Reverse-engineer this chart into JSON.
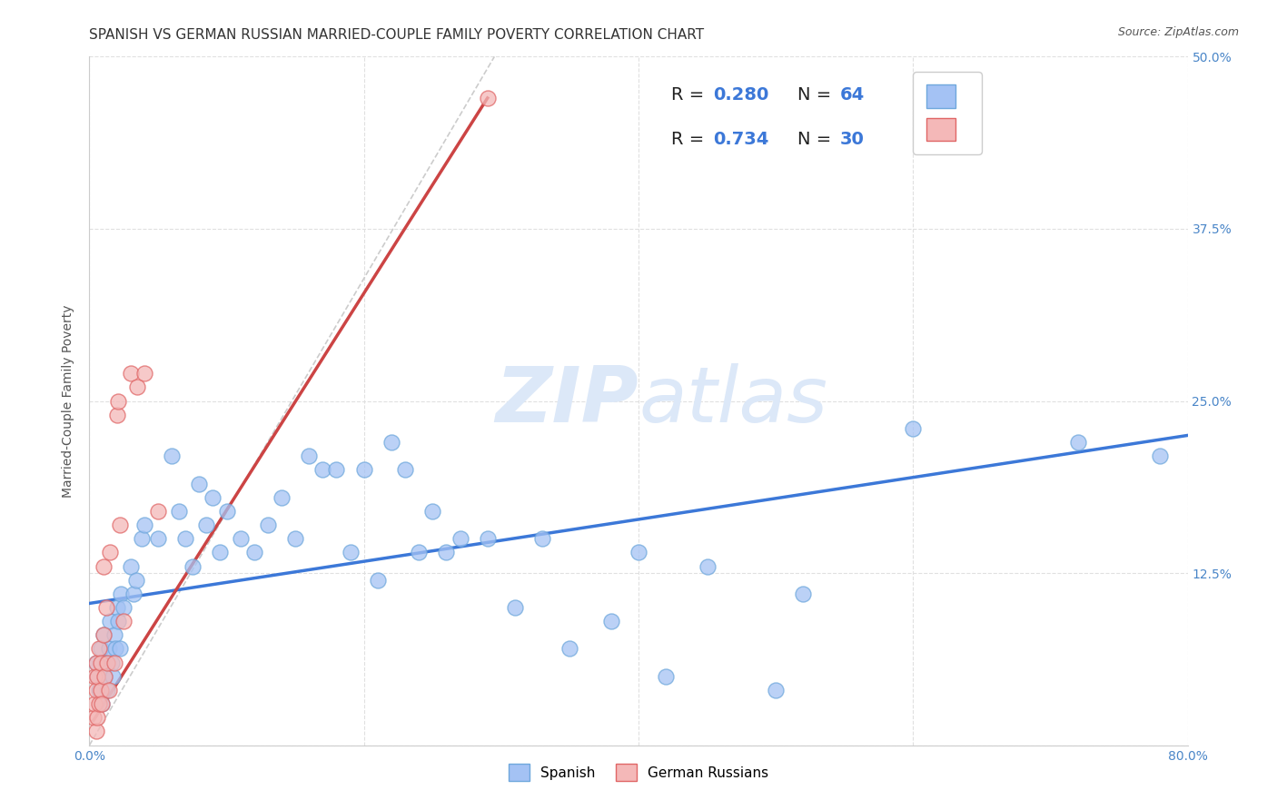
{
  "title": "SPANISH VS GERMAN RUSSIAN MARRIED-COUPLE FAMILY POVERTY CORRELATION CHART",
  "source": "Source: ZipAtlas.com",
  "ylabel": "Married-Couple Family Poverty",
  "xlim": [
    0.0,
    0.8
  ],
  "ylim": [
    0.0,
    0.5
  ],
  "xticks": [
    0.0,
    0.2,
    0.4,
    0.6,
    0.8
  ],
  "xticklabels": [
    "0.0%",
    "",
    "",
    "",
    "80.0%"
  ],
  "yticks": [
    0.0,
    0.125,
    0.25,
    0.375,
    0.5
  ],
  "yticklabels": [
    "",
    "12.5%",
    "25.0%",
    "37.5%",
    "50.0%"
  ],
  "blue_color": "#a4c2f4",
  "pink_color": "#f4b8b8",
  "blue_edge_color": "#6fa8dc",
  "pink_edge_color": "#e06666",
  "blue_line_color": "#3c78d8",
  "pink_line_color": "#cc4444",
  "dashed_line_color": "#cccccc",
  "watermark_color": "#dce8f8",
  "spanish_x": [
    0.005,
    0.006,
    0.007,
    0.008,
    0.009,
    0.01,
    0.011,
    0.012,
    0.013,
    0.014,
    0.015,
    0.016,
    0.017,
    0.018,
    0.019,
    0.02,
    0.021,
    0.022,
    0.023,
    0.025,
    0.03,
    0.032,
    0.034,
    0.038,
    0.04,
    0.05,
    0.06,
    0.065,
    0.07,
    0.075,
    0.08,
    0.085,
    0.09,
    0.095,
    0.1,
    0.11,
    0.12,
    0.13,
    0.14,
    0.15,
    0.16,
    0.17,
    0.18,
    0.19,
    0.2,
    0.21,
    0.22,
    0.23,
    0.24,
    0.25,
    0.26,
    0.27,
    0.29,
    0.31,
    0.33,
    0.35,
    0.38,
    0.4,
    0.42,
    0.45,
    0.5,
    0.52,
    0.6,
    0.72,
    0.78
  ],
  "spanish_y": [
    0.06,
    0.05,
    0.04,
    0.07,
    0.03,
    0.08,
    0.05,
    0.06,
    0.04,
    0.07,
    0.09,
    0.06,
    0.05,
    0.08,
    0.07,
    0.1,
    0.09,
    0.07,
    0.11,
    0.1,
    0.13,
    0.11,
    0.12,
    0.15,
    0.16,
    0.15,
    0.21,
    0.17,
    0.15,
    0.13,
    0.19,
    0.16,
    0.18,
    0.14,
    0.17,
    0.15,
    0.14,
    0.16,
    0.18,
    0.15,
    0.21,
    0.2,
    0.2,
    0.14,
    0.2,
    0.12,
    0.22,
    0.2,
    0.14,
    0.17,
    0.14,
    0.15,
    0.15,
    0.1,
    0.15,
    0.07,
    0.09,
    0.14,
    0.05,
    0.13,
    0.04,
    0.11,
    0.23,
    0.22,
    0.21
  ],
  "german_russian_x": [
    0.003,
    0.004,
    0.004,
    0.005,
    0.005,
    0.005,
    0.006,
    0.006,
    0.007,
    0.007,
    0.008,
    0.008,
    0.009,
    0.01,
    0.01,
    0.011,
    0.012,
    0.013,
    0.014,
    0.015,
    0.018,
    0.02,
    0.021,
    0.022,
    0.025,
    0.03,
    0.035,
    0.04,
    0.05,
    0.29
  ],
  "german_russian_y": [
    0.02,
    0.03,
    0.05,
    0.01,
    0.04,
    0.06,
    0.02,
    0.05,
    0.03,
    0.07,
    0.04,
    0.06,
    0.03,
    0.08,
    0.13,
    0.05,
    0.1,
    0.06,
    0.04,
    0.14,
    0.06,
    0.24,
    0.25,
    0.16,
    0.09,
    0.27,
    0.26,
    0.27,
    0.17,
    0.47
  ],
  "blue_trend_x": [
    0.0,
    0.8
  ],
  "blue_trend_y": [
    0.103,
    0.225
  ],
  "pink_trend_x": [
    0.003,
    0.29
  ],
  "pink_trend_y": [
    0.018,
    0.47
  ],
  "dashed_trend_x": [
    0.0,
    0.295
  ],
  "dashed_trend_y": [
    0.0,
    0.5
  ],
  "grid_color": "#e0e0e0",
  "background_color": "#ffffff",
  "title_fontsize": 11,
  "axis_label_fontsize": 10,
  "tick_fontsize": 10
}
